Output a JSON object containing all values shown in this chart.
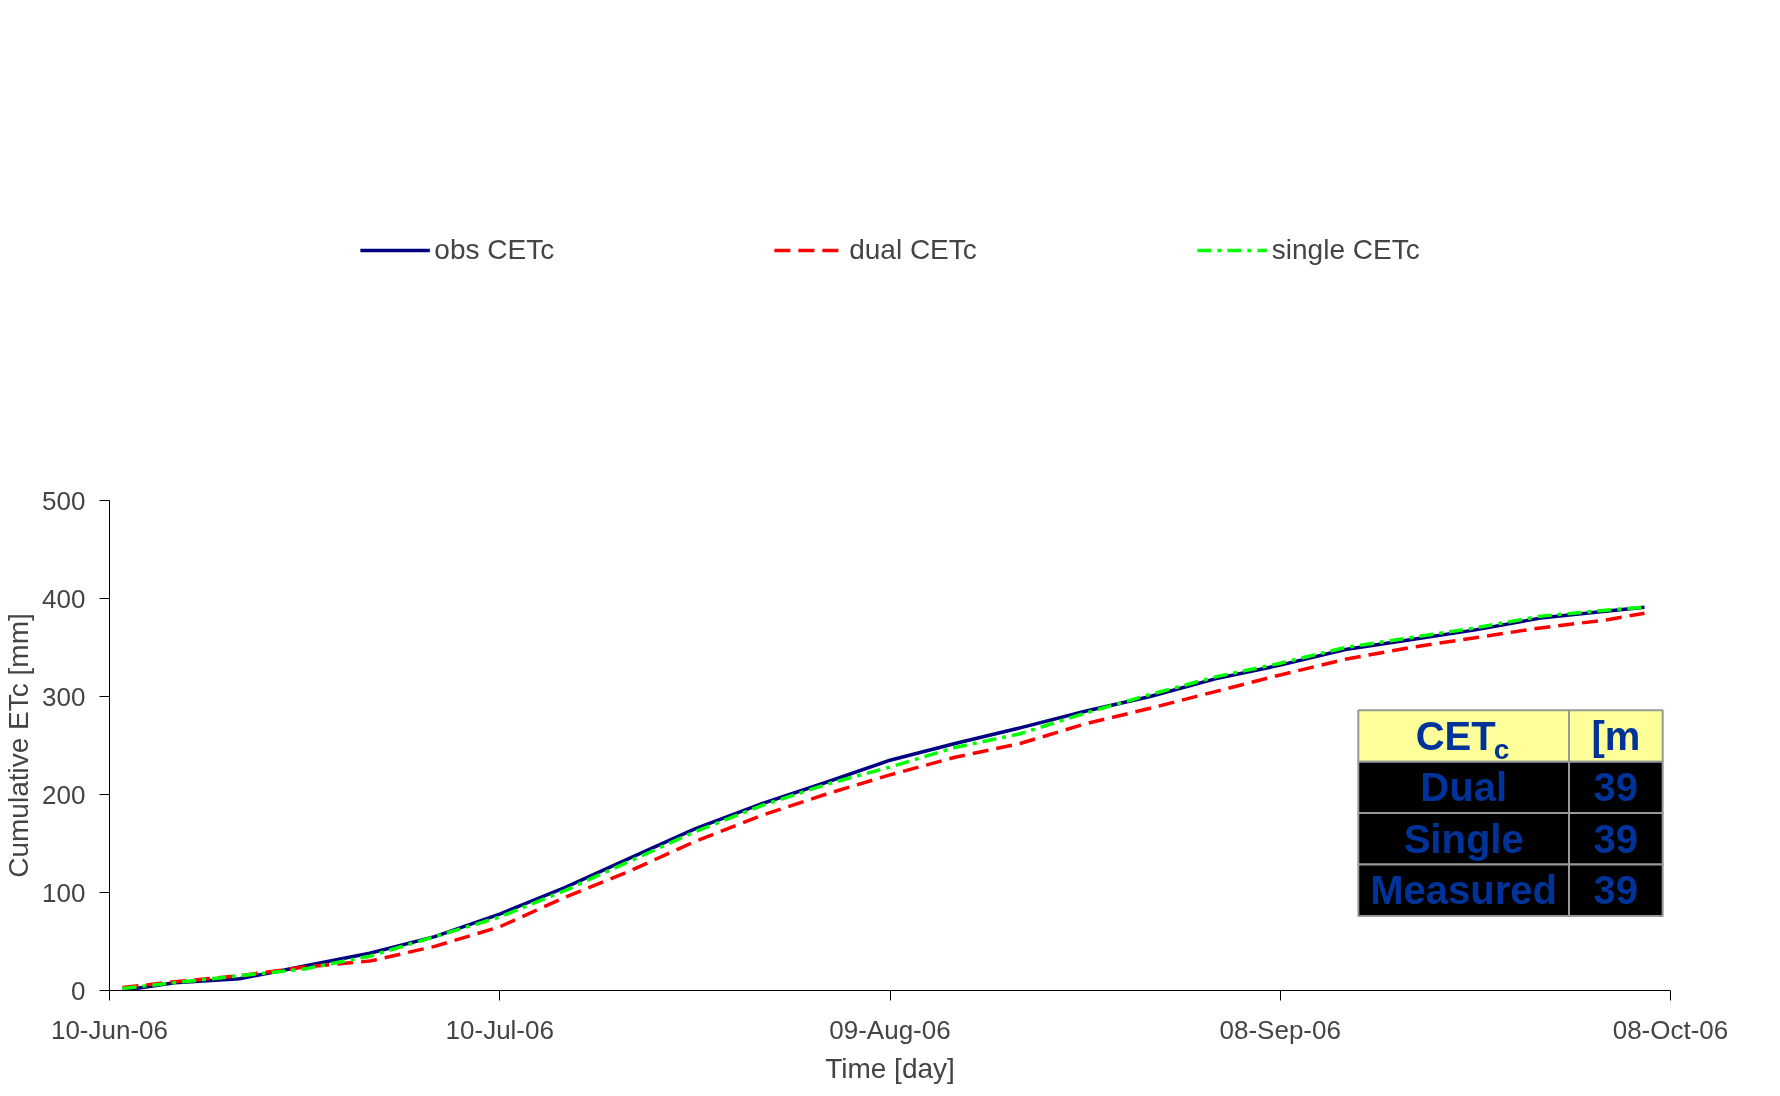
{
  "chart_data": {
    "type": "line",
    "xlabel": "Time [day]",
    "ylabel": "Cumulative ETc [mm]",
    "x": [
      "2006-06-11",
      "2006-06-15",
      "2006-06-20",
      "2006-06-25",
      "2006-06-30",
      "2006-07-05",
      "2006-07-10",
      "2006-07-15",
      "2006-07-20",
      "2006-07-25",
      "2006-07-30",
      "2006-08-04",
      "2006-08-09",
      "2006-08-14",
      "2006-08-19",
      "2006-08-24",
      "2006-08-29",
      "2006-09-03",
      "2006-09-08",
      "2006-09-13",
      "2006-09-18",
      "2006-09-23",
      "2006-09-28",
      "2006-10-03",
      "2006-10-06"
    ],
    "series": [
      {
        "name": "obs CETc",
        "color": "#000080",
        "line_style": "solid",
        "values": [
          0,
          8,
          12,
          25,
          38,
          55,
          78,
          105,
          135,
          165,
          190,
          212,
          235,
          252,
          268,
          285,
          300,
          318,
          332,
          348,
          358,
          368,
          380,
          387,
          391
        ]
      },
      {
        "name": "dual CETc",
        "color": "#ff0000",
        "line_style": "dashed",
        "values": [
          3,
          9,
          15,
          24,
          30,
          45,
          65,
          95,
          122,
          152,
          178,
          200,
          220,
          238,
          252,
          272,
          288,
          305,
          322,
          338,
          350,
          360,
          370,
          378,
          385
        ]
      },
      {
        "name": "single CETc",
        "color": "#00ff00",
        "line_style": "dashdot",
        "values": [
          2,
          8,
          15,
          22,
          35,
          55,
          75,
          102,
          132,
          162,
          188,
          210,
          228,
          248,
          262,
          283,
          302,
          320,
          334,
          350,
          360,
          370,
          382,
          388,
          391
        ]
      }
    ],
    "xlim": [
      "2006-06-10",
      "2006-10-08"
    ],
    "xticks": [
      {
        "value": "2006-06-10",
        "label": "10-Jun-06"
      },
      {
        "value": "2006-07-10",
        "label": "10-Jul-06"
      },
      {
        "value": "2006-08-09",
        "label": "09-Aug-06"
      },
      {
        "value": "2006-09-08",
        "label": "08-Sep-06"
      },
      {
        "value": "2006-10-08",
        "label": "08-Oct-06"
      }
    ],
    "ylim": [
      0,
      500
    ],
    "yticks": [
      0,
      100,
      200,
      300,
      400,
      500
    ],
    "grid": false,
    "legend": "top",
    "marker": "none",
    "annotations": [
      "CET$_{c}$",
      "[m",
      "Dual",
      "39",
      "Single",
      "39",
      "Measured",
      "39"
    ]
  }
}
